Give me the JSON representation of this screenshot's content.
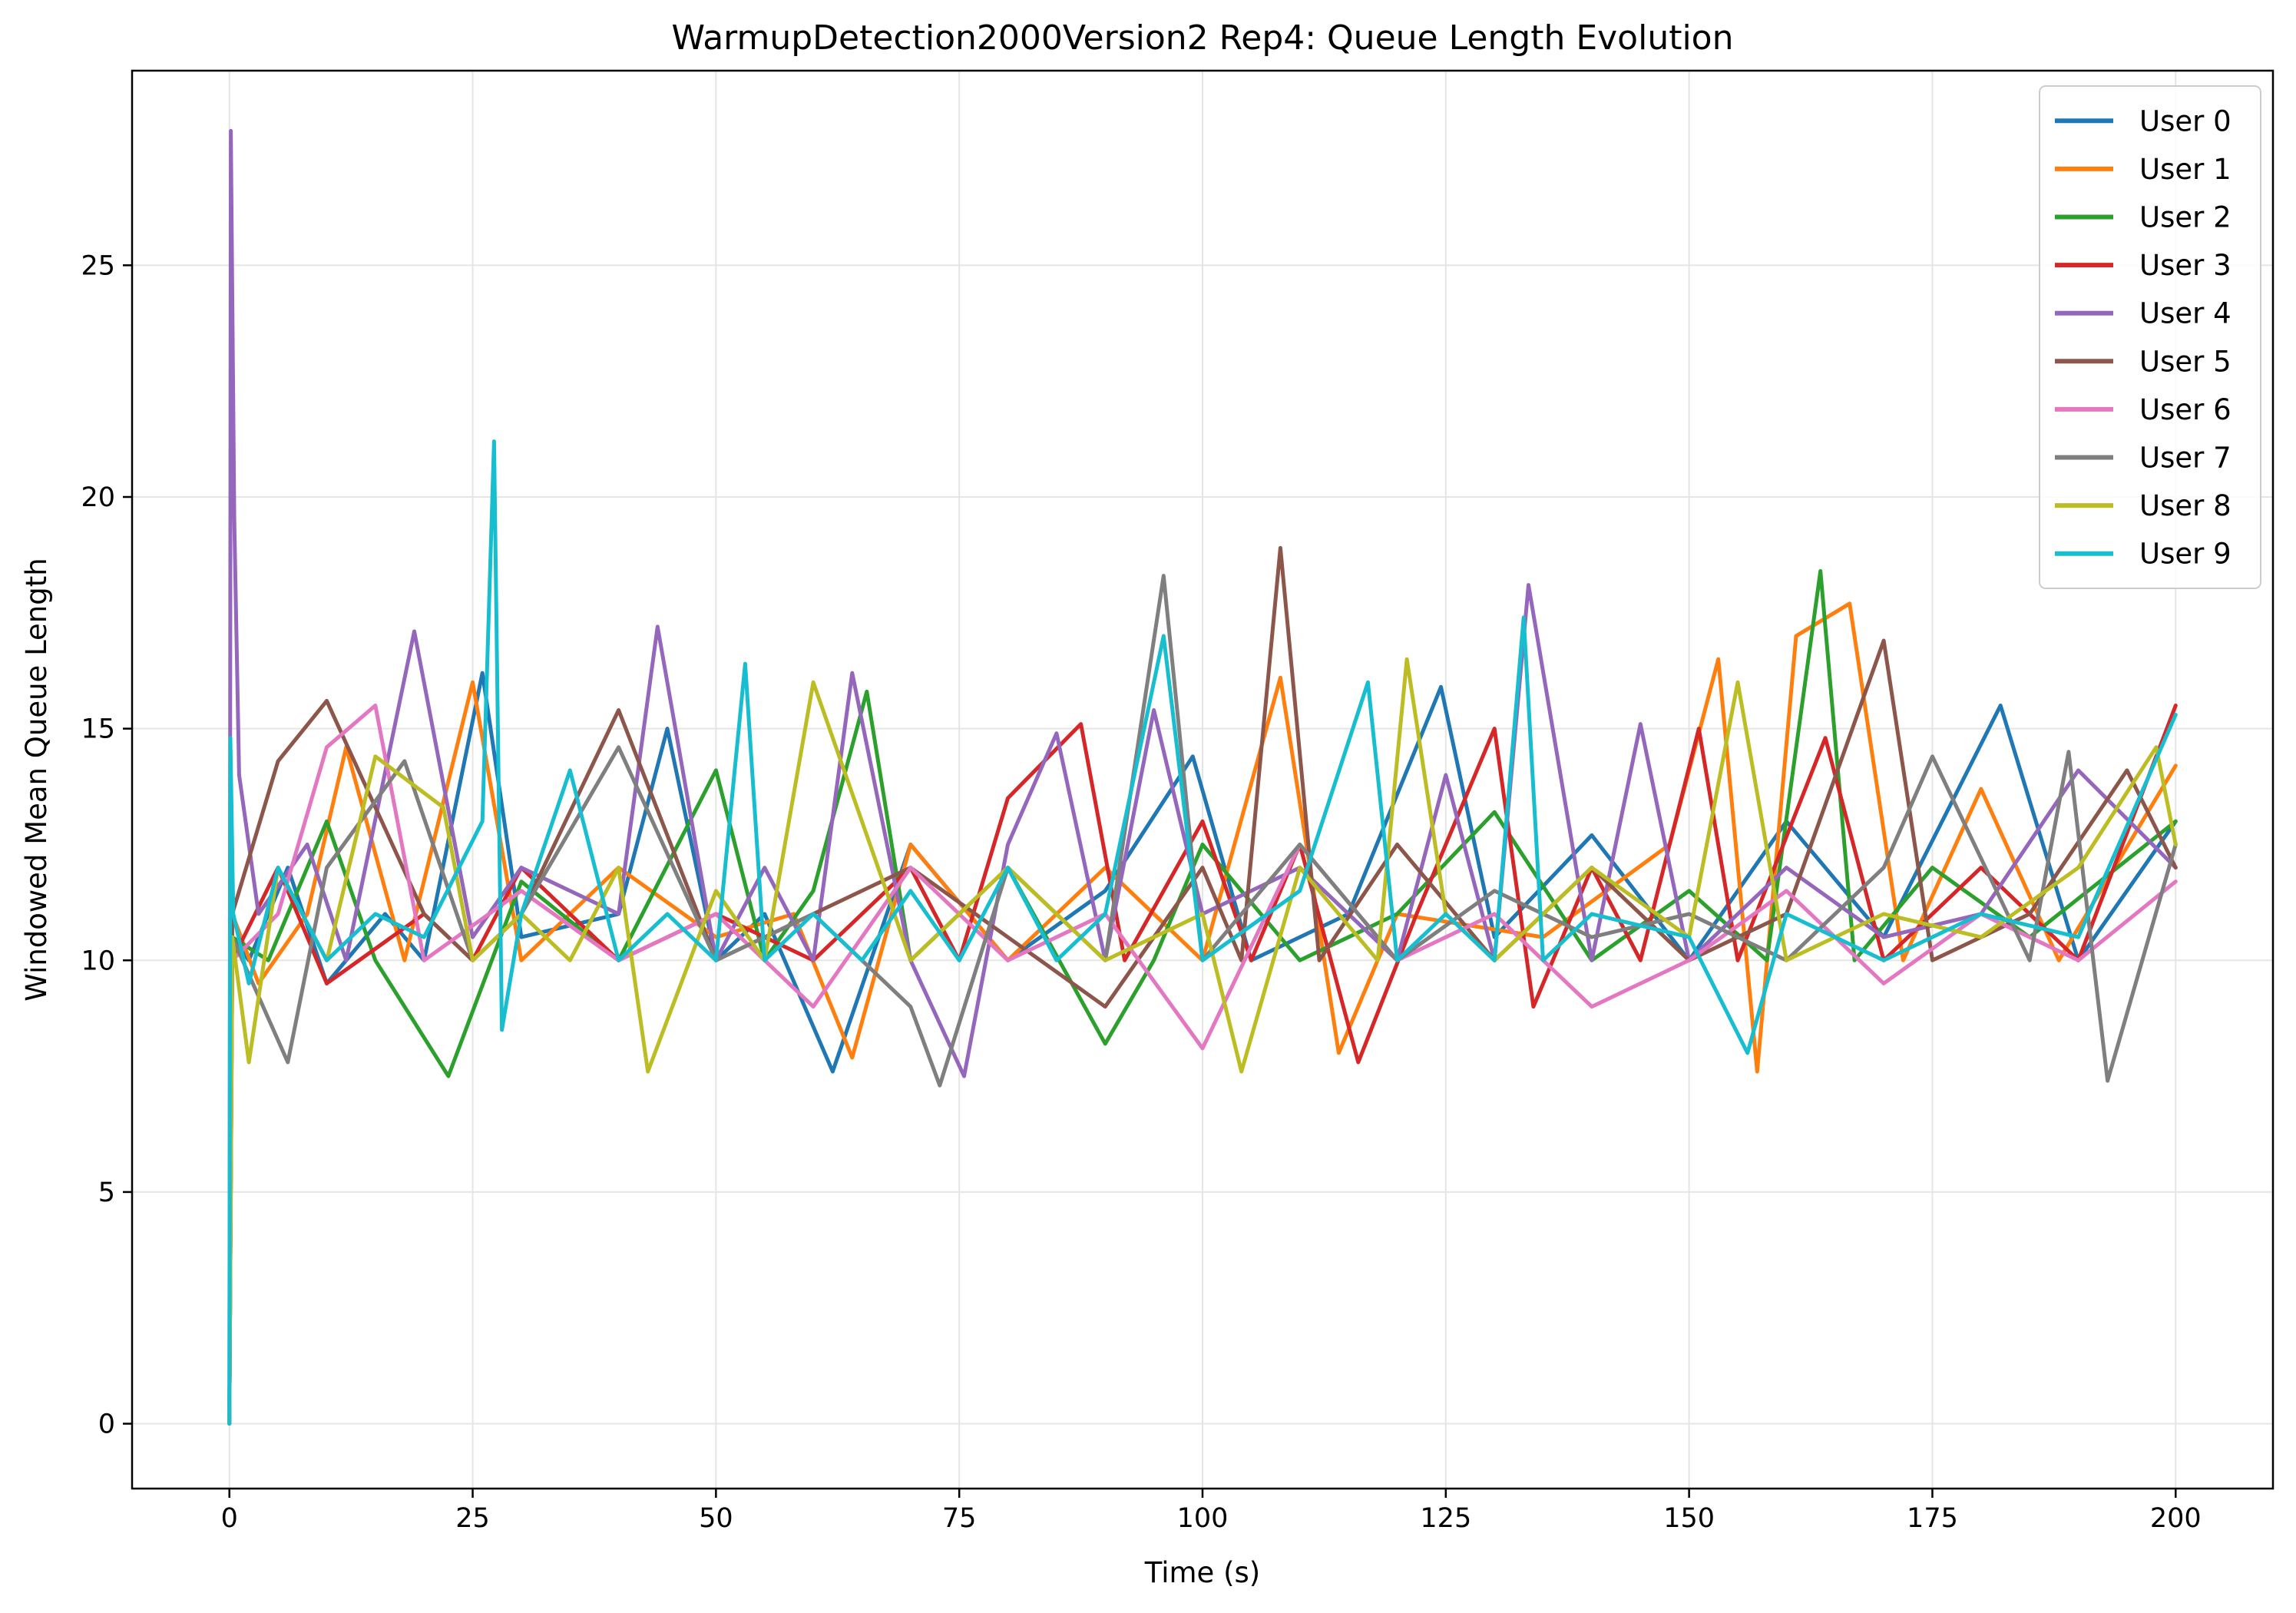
{
  "chart_data": {
    "type": "line",
    "title": "WarmupDetection2000Version2 Rep4: Queue Length Evolution",
    "xlabel": "Time (s)",
    "ylabel": "Windowed Mean Queue Length",
    "xlim": [
      -10,
      210
    ],
    "ylim": [
      -1.4,
      29.2
    ],
    "xticks": [
      0,
      25,
      50,
      75,
      100,
      125,
      150,
      175,
      200
    ],
    "yticks": [
      0,
      5,
      10,
      15,
      20,
      25
    ],
    "grid": true,
    "legend_position": "top-right",
    "series": [
      {
        "name": "User 0",
        "color": "#1f77b4",
        "x": [
          0,
          0.3,
          2,
          6,
          10,
          16,
          20,
          26,
          30,
          40,
          45,
          50,
          55,
          62,
          70,
          80,
          90,
          99,
          105,
          115,
          124.5,
          130,
          140,
          150,
          160,
          170,
          182,
          190,
          200
        ],
        "y": [
          0,
          10.5,
          10,
          12,
          9.5,
          11,
          10,
          16.2,
          10.5,
          11,
          15,
          10,
          11,
          7.6,
          12.5,
          10,
          11.5,
          14.4,
          10,
          11,
          15.9,
          10.5,
          12.7,
          10,
          13,
          10.5,
          15.5,
          10,
          13
        ]
      },
      {
        "name": "User 1",
        "color": "#ff7f0e",
        "x": [
          0,
          0.3,
          3,
          8,
          12,
          18,
          25,
          30,
          40,
          50,
          58,
          64,
          70,
          80,
          90,
          100,
          108,
          114,
          120,
          135,
          148,
          153,
          157,
          161,
          166.5,
          172,
          180,
          188,
          200
        ],
        "y": [
          0,
          11,
          9.5,
          11,
          14.6,
          10,
          16,
          10,
          12,
          10.5,
          11,
          7.9,
          12.5,
          10,
          12,
          10,
          16.1,
          8,
          11,
          10.5,
          12.5,
          16.5,
          7.6,
          17,
          17.7,
          10,
          13.7,
          10,
          14.2
        ]
      },
      {
        "name": "User 2",
        "color": "#2ca02c",
        "x": [
          0,
          0.3,
          4,
          10,
          15,
          22.5,
          30,
          40,
          50,
          55,
          60,
          65.5,
          70,
          80,
          90,
          95,
          100,
          110,
          120,
          130,
          140,
          150,
          158,
          163.5,
          167,
          175,
          185,
          200
        ],
        "y": [
          0,
          10.5,
          10,
          13,
          10,
          7.5,
          11.7,
          10,
          14.1,
          10,
          11.5,
          15.8,
          10,
          12,
          8.2,
          10,
          12.5,
          10,
          11,
          13.2,
          10,
          11.5,
          10,
          18.4,
          10,
          12,
          10.5,
          13
        ]
      },
      {
        "name": "User 3",
        "color": "#d62728",
        "x": [
          0,
          0.3,
          5,
          10,
          20,
          25,
          30,
          40,
          50,
          60,
          70,
          75,
          80,
          87.5,
          92,
          100,
          105,
          110,
          116,
          122,
          130,
          134,
          140,
          145,
          151,
          155,
          164,
          170,
          180,
          190,
          200
        ],
        "y": [
          0,
          10,
          12,
          9.5,
          11,
          10,
          12,
          10,
          11,
          10,
          12,
          10,
          13.5,
          15.1,
          10,
          13,
          10,
          12.5,
          7.8,
          11,
          15,
          9,
          12,
          10,
          15,
          10,
          14.8,
          10,
          12,
          10,
          15.5
        ]
      },
      {
        "name": "User 4",
        "color": "#9467bd",
        "x": [
          0,
          0.15,
          0.5,
          1,
          3,
          8,
          12,
          19,
          25,
          30,
          40,
          44,
          50,
          55,
          60,
          64,
          70,
          75.5,
          80,
          85,
          90,
          95,
          100,
          110,
          120,
          125,
          130,
          133.5,
          140,
          145,
          150,
          160,
          170,
          180,
          190,
          200
        ],
        "y": [
          0,
          27.9,
          19.5,
          14,
          11,
          12.5,
          10,
          17.1,
          10.5,
          12,
          11,
          17.2,
          10,
          12,
          10,
          16.2,
          10,
          7.5,
          12.5,
          14.9,
          10,
          15.4,
          11,
          12,
          10,
          14,
          10,
          18.1,
          10,
          15.1,
          10,
          12,
          10.5,
          11,
          14.1,
          12
        ]
      },
      {
        "name": "User 5",
        "color": "#8c564b",
        "x": [
          0,
          0.3,
          5,
          10,
          20,
          25,
          30,
          40,
          50,
          60,
          70,
          80,
          90,
          100,
          104,
          108,
          112,
          120,
          130,
          140,
          150,
          160,
          170,
          175,
          185,
          195,
          200
        ],
        "y": [
          0,
          11,
          14.3,
          15.6,
          11,
          10,
          11,
          15.4,
          10,
          11,
          12,
          10.5,
          9,
          12,
          10,
          18.9,
          10,
          12.5,
          10,
          12,
          10,
          11,
          16.9,
          10,
          11,
          14.1,
          12
        ]
      },
      {
        "name": "User 6",
        "color": "#e377c2",
        "x": [
          0,
          0.3,
          5,
          10,
          15,
          20,
          30,
          40,
          50,
          60,
          70,
          80,
          90,
          100,
          110,
          120,
          130,
          140,
          150,
          160,
          170,
          180,
          190,
          200
        ],
        "y": [
          0,
          10,
          11,
          14.6,
          15.5,
          10,
          11.5,
          10,
          11,
          9,
          12,
          10,
          11,
          8.1,
          12.5,
          10,
          11,
          9,
          10,
          11.5,
          9.5,
          11,
          10,
          11.7
        ]
      },
      {
        "name": "User 7",
        "color": "#7f7f7f",
        "x": [
          0,
          0.3,
          6,
          10,
          18,
          25,
          30,
          40,
          50,
          60,
          70,
          73,
          80,
          90,
          96,
          100,
          110,
          120,
          130,
          140,
          150,
          160,
          170,
          175,
          185,
          189,
          193,
          200
        ],
        "y": [
          0,
          10.5,
          7.8,
          12,
          14.3,
          10,
          11,
          14.6,
          10,
          11,
          9,
          7.3,
          12,
          10,
          18.3,
          10,
          12.5,
          10,
          11.5,
          10.5,
          11,
          10,
          12,
          14.4,
          10,
          14.5,
          7.4,
          12.5
        ]
      },
      {
        "name": "User 8",
        "color": "#bcbd22",
        "x": [
          0,
          0.3,
          2,
          5,
          10,
          15,
          22,
          25,
          30,
          35,
          40,
          43,
          50,
          55,
          60,
          70,
          80,
          90,
          100,
          104,
          110,
          118,
          121,
          125,
          130,
          140,
          150,
          155,
          160,
          170,
          180,
          190,
          198,
          200
        ],
        "y": [
          0,
          10.5,
          7.8,
          12,
          10,
          14.4,
          13.3,
          10,
          11,
          10,
          12,
          7.6,
          11.5,
          10,
          16,
          10,
          12,
          10,
          11,
          7.6,
          12,
          10,
          16.5,
          11,
          10,
          12,
          10.5,
          16,
          10,
          11,
          10.5,
          12,
          14.6,
          12.5
        ]
      },
      {
        "name": "User 9",
        "color": "#17becf",
        "x": [
          0,
          0.1,
          0.4,
          2,
          5,
          10,
          15,
          20,
          26,
          27.2,
          28,
          30,
          35,
          40,
          45,
          50,
          53,
          55,
          60,
          65,
          70,
          75,
          80,
          85,
          90,
          96,
          100,
          110,
          117,
          120,
          125,
          130,
          133,
          135,
          140,
          150,
          156,
          160,
          170,
          180,
          190,
          200
        ],
        "y": [
          0,
          14.8,
          11,
          9.5,
          12,
          10,
          11,
          10.5,
          13,
          21.2,
          8.5,
          11,
          14.1,
          10,
          11,
          10,
          16.4,
          10,
          11,
          10,
          11.5,
          10,
          12,
          10,
          11,
          17,
          10,
          11.5,
          16,
          10,
          11,
          10,
          17.4,
          10,
          11,
          10.5,
          8,
          11,
          10,
          11,
          10.5,
          15.3
        ]
      }
    ]
  }
}
